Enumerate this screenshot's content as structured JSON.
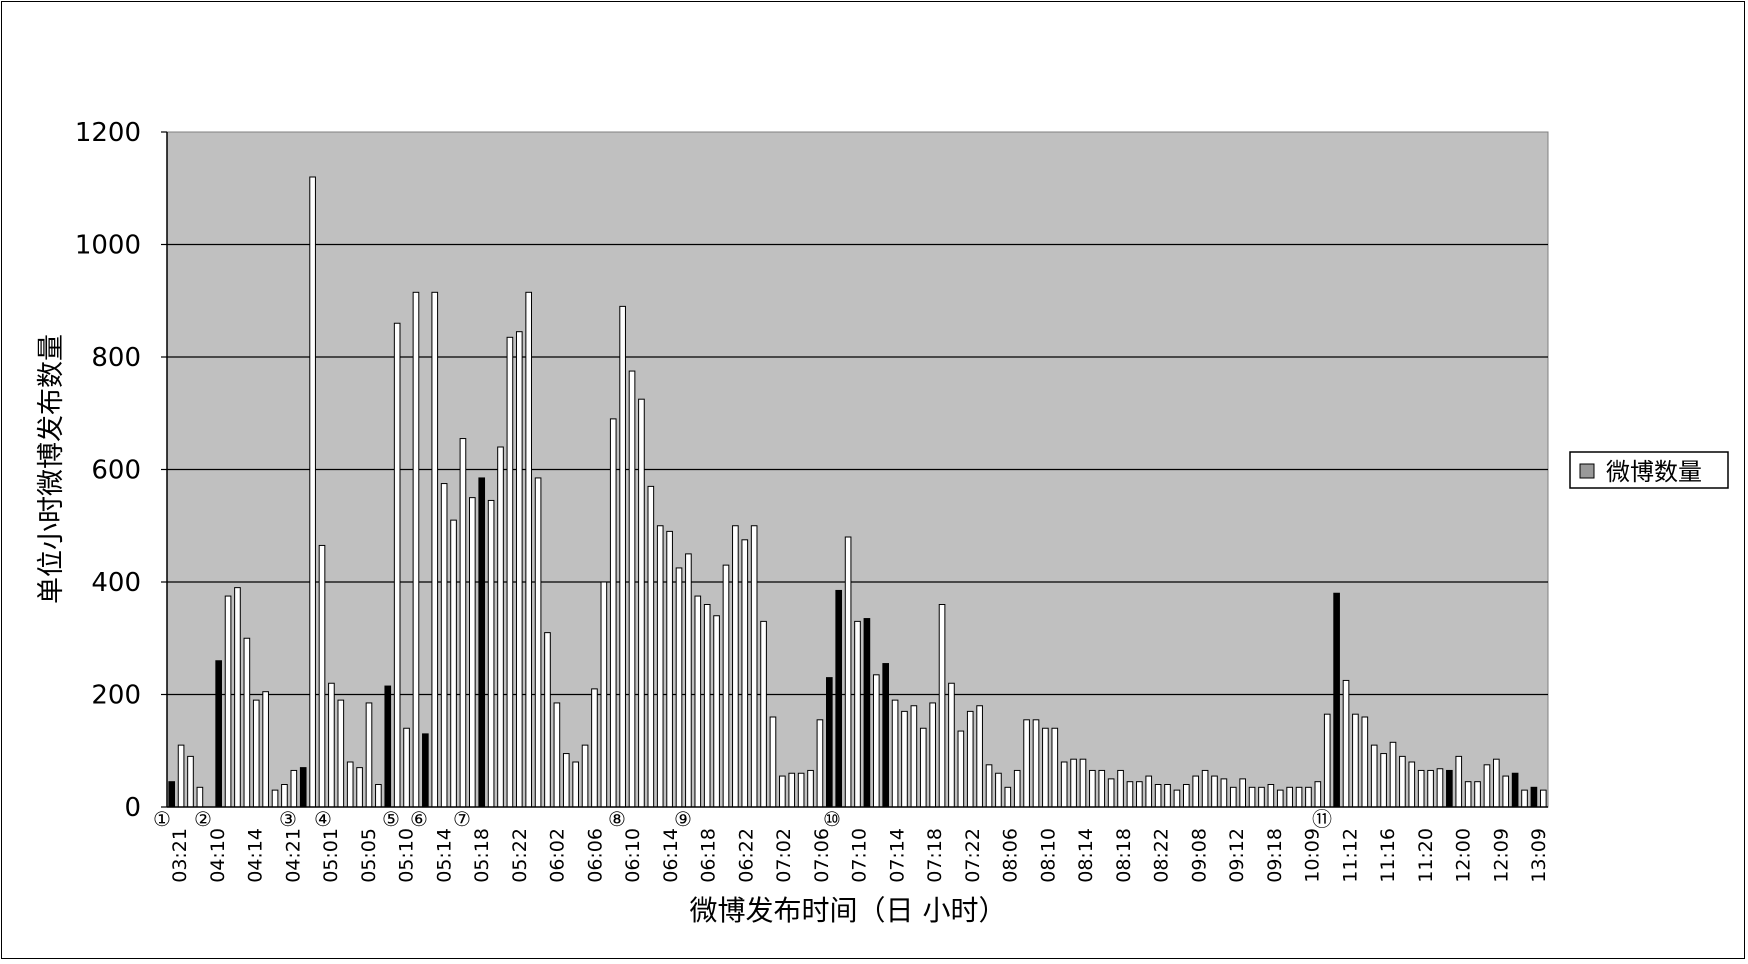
{
  "chart_data": {
    "type": "bar",
    "title": "",
    "xlabel": "微博发布时间（日 小时）",
    "ylabel": "单位小时微博发布数量",
    "ylim": [
      0,
      1200
    ],
    "yticks": [
      0,
      200,
      400,
      600,
      800,
      1000,
      1200
    ],
    "grid": true,
    "legend_position": "right",
    "series": [
      {
        "name": "微博数量",
        "color": "#ffffff",
        "values": [
          45,
          110,
          90,
          35,
          0,
          260,
          375,
          390,
          300,
          190,
          205,
          30,
          40,
          65,
          70,
          1120,
          465,
          220,
          190,
          80,
          70,
          185,
          40,
          215,
          860,
          140,
          915,
          130,
          915,
          575,
          510,
          655,
          550,
          585,
          545,
          640,
          835,
          845,
          915,
          585,
          310,
          185,
          95,
          80,
          110,
          210,
          400,
          690,
          890,
          775,
          725,
          570,
          500,
          490,
          425,
          450,
          375,
          360,
          340,
          430,
          500,
          475,
          500,
          330,
          160,
          55,
          60,
          60,
          65,
          155,
          230,
          385,
          480,
          330,
          335,
          235,
          255,
          190,
          170,
          180,
          140,
          185,
          360,
          220,
          135,
          170,
          180,
          75,
          60,
          35,
          65,
          155,
          155,
          140,
          140,
          80,
          85,
          85,
          65,
          65,
          50,
          65,
          45,
          45,
          55,
          40,
          40,
          30,
          40,
          55,
          65,
          55,
          50,
          35,
          50,
          35,
          35,
          40,
          30,
          35,
          35,
          35,
          45,
          165,
          380,
          225,
          165,
          160,
          110,
          95,
          115,
          90,
          80,
          65,
          65,
          68,
          65,
          90,
          45,
          45,
          75,
          85,
          55,
          60,
          30,
          35,
          30
        ]
      }
    ],
    "dark_bar_indices": [
      0,
      5,
      14,
      23,
      27,
      33,
      70,
      71,
      74,
      76,
      124,
      136,
      143,
      145
    ],
    "tick_labels": [
      "03:21",
      "04:10",
      "04:14",
      "04:21",
      "05:01",
      "05:05",
      "05:10",
      "05:14",
      "05:18",
      "05:22",
      "06:02",
      "06:06",
      "06:10",
      "06:14",
      "06:18",
      "06:22",
      "07:02",
      "07:06",
      "07:10",
      "07:14",
      "07:18",
      "07:22",
      "08:06",
      "08:10",
      "08:14",
      "08:18",
      "08:22",
      "09:08",
      "09:12",
      "09:18",
      "10:09",
      "11:12",
      "11:16",
      "11:20",
      "12:00",
      "12:09",
      "13:09"
    ],
    "markers": [
      "①",
      "②",
      "③",
      "④",
      "⑤",
      "⑥",
      "⑦",
      "⑧",
      "⑨",
      "⑩",
      "⑪"
    ],
    "colors": {
      "plot_bg": "#c0c0c0",
      "bar": "#ffffff",
      "dark_bar": "#000000",
      "legend_swatch": "#999999"
    }
  }
}
